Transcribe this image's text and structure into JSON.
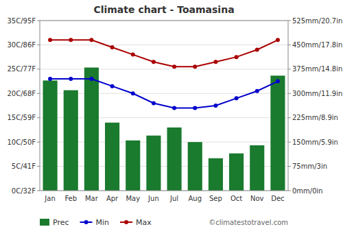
{
  "chart_data": {
    "type": "bar",
    "title": "Climate chart - Toamasina",
    "categories": [
      "Jan",
      "Feb",
      "Mar",
      "Apr",
      "May",
      "Jun",
      "Jul",
      "Aug",
      "Sep",
      "Oct",
      "Nov",
      "Dec"
    ],
    "series": [
      {
        "name": "Prec",
        "type": "bar",
        "axis": "y2",
        "color": "#1a7a2e",
        "values": [
          340,
          310,
          380,
          210,
          155,
          170,
          195,
          150,
          100,
          115,
          140,
          355
        ]
      },
      {
        "name": "Min",
        "type": "line",
        "marker": "circle",
        "color": "#0000cc",
        "values": [
          23.0,
          23.0,
          23.0,
          21.5,
          20.0,
          18.0,
          17.0,
          17.0,
          17.5,
          19.0,
          20.5,
          22.5
        ]
      },
      {
        "name": "Max",
        "type": "line",
        "marker": "circle",
        "color": "#aa0000",
        "values": [
          31.0,
          31.0,
          31.0,
          29.5,
          28.0,
          26.5,
          25.5,
          25.5,
          26.5,
          27.5,
          29.0,
          31.0
        ]
      }
    ],
    "ylim": [
      0,
      35
    ],
    "yticks": [
      {
        "value": 0,
        "label": "0C/32F"
      },
      {
        "value": 5,
        "label": "5C/41F"
      },
      {
        "value": 10,
        "label": "10C/50F"
      },
      {
        "value": 15,
        "label": "15C/59F"
      },
      {
        "value": 20,
        "label": "20C/68F"
      },
      {
        "value": 25,
        "label": "25C/77F"
      },
      {
        "value": 30,
        "label": "30C/86F"
      },
      {
        "value": 35,
        "label": "35C/95F"
      }
    ],
    "y2lim": [
      0,
      525
    ],
    "y2ticks": [
      {
        "value": 0,
        "label": "0mm/0in"
      },
      {
        "value": 75,
        "label": "75mm/3in"
      },
      {
        "value": 150,
        "label": "150mm/5.9in"
      },
      {
        "value": 225,
        "label": "225mm/8.9in"
      },
      {
        "value": 300,
        "label": "300mm/11.9in"
      },
      {
        "value": 375,
        "label": "375mm/14.8in"
      },
      {
        "value": 450,
        "label": "450mm/17.8in"
      },
      {
        "value": 525,
        "label": "525mm/20.7in"
      }
    ],
    "grid": true,
    "legend": "bottom",
    "annotations": [
      "©climatestotravel.com"
    ]
  }
}
